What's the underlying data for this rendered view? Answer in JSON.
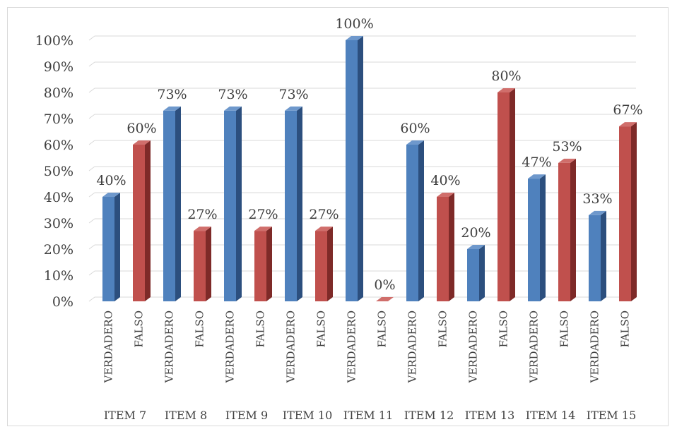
{
  "chart_data": {
    "type": "bar",
    "style": "3d-clustered-column",
    "groups": [
      "ITEM 7",
      "ITEM 8",
      "ITEM 9",
      "ITEM 10",
      "ITEM 11",
      "ITEM 12",
      "ITEM 13",
      "ITEM 14",
      "ITEM 15"
    ],
    "categories": [
      "VERDADERO",
      "FALSO"
    ],
    "values": [
      [
        40,
        60
      ],
      [
        73,
        27
      ],
      [
        73,
        27
      ],
      [
        73,
        27
      ],
      [
        100,
        0
      ],
      [
        60,
        40
      ],
      [
        20,
        80
      ],
      [
        47,
        53
      ],
      [
        33,
        67
      ]
    ],
    "data_labels": [
      [
        "40%",
        "60%"
      ],
      [
        "73%",
        "27%"
      ],
      [
        "73%",
        "27%"
      ],
      [
        "73%",
        "27%"
      ],
      [
        "100%",
        "0%"
      ],
      [
        "60%",
        "40%"
      ],
      [
        "20%",
        "80%"
      ],
      [
        "47%",
        "53%"
      ],
      [
        "33%",
        "67%"
      ]
    ],
    "ylim": [
      0,
      100
    ],
    "y_ticks": [
      "0%",
      "10%",
      "20%",
      "30%",
      "40%",
      "50%",
      "60%",
      "70%",
      "80%",
      "90%",
      "100%"
    ],
    "grid": true,
    "colors": {
      "VERDADERO": {
        "front": "#4f81bd",
        "side": "#2c4f7e",
        "top": "#6e98cc"
      },
      "FALSO": {
        "front": "#c0504d",
        "side": "#7e2a28",
        "top": "#d06e6b"
      },
      "gridline": "#d9d9d9",
      "text": "#404040"
    }
  }
}
